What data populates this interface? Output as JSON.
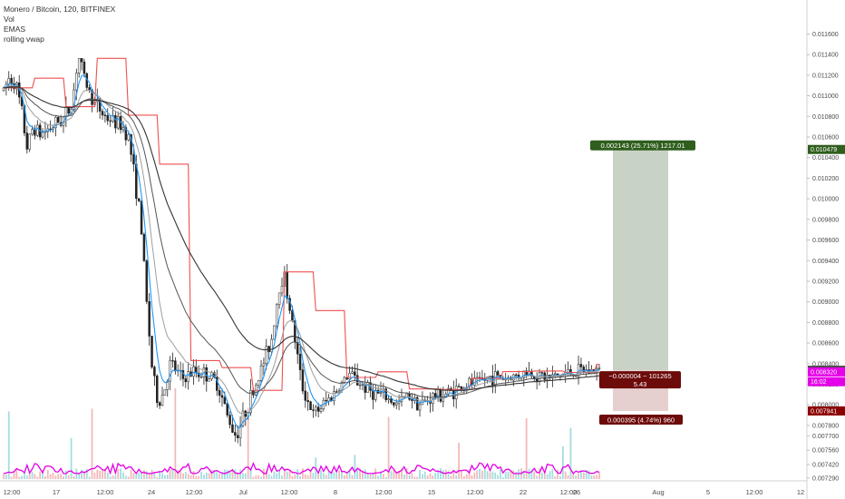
{
  "header": {
    "symbol_line": "Monero / Bitcoin, 120, BITFINEX",
    "indicators": [
      "Vol",
      "EMAS",
      "rolling vwap"
    ]
  },
  "chart_data": {
    "type": "candlestick",
    "ylim": [
      0.0072,
      0.0118
    ],
    "y_ticks": [
      "0.011600",
      "0.011400",
      "0.011200",
      "0.011000",
      "0.010800",
      "0.010600",
      "0.010400",
      "0.010200",
      "0.010000",
      "0.009800",
      "0.009600",
      "0.009400",
      "0.009200",
      "0.009000",
      "0.008800",
      "0.008600",
      "0.008400",
      "0.008200",
      "0.008000",
      "0.007800",
      "0.007700",
      "0.007560",
      "0.007420",
      "0.007290"
    ],
    "x_ticks": [
      "12:00",
      "17",
      "12:00",
      "24",
      "12:00",
      "Jul",
      "12:00",
      "8",
      "12:00",
      "15",
      "12:00",
      "22",
      "12:00",
      "26",
      "Aug",
      "5",
      "12:00",
      "12"
    ],
    "price_path": [
      [
        0.0,
        0.01105
      ],
      [
        0.01,
        0.01118
      ],
      [
        0.02,
        0.01112
      ],
      [
        0.03,
        0.01085
      ],
      [
        0.04,
        0.01048
      ],
      [
        0.05,
        0.01072
      ],
      [
        0.06,
        0.01062
      ],
      [
        0.08,
        0.0107
      ],
      [
        0.1,
        0.01078
      ],
      [
        0.115,
        0.01092
      ],
      [
        0.125,
        0.0114
      ],
      [
        0.135,
        0.01118
      ],
      [
        0.15,
        0.01095
      ],
      [
        0.17,
        0.0108
      ],
      [
        0.185,
        0.01075
      ],
      [
        0.2,
        0.0107
      ],
      [
        0.21,
        0.0106
      ],
      [
        0.22,
        0.0102
      ],
      [
        0.23,
        0.0098
      ],
      [
        0.24,
        0.009
      ],
      [
        0.25,
        0.0083
      ],
      [
        0.26,
        0.008
      ],
      [
        0.27,
        0.00815
      ],
      [
        0.28,
        0.0084
      ],
      [
        0.3,
        0.00825
      ],
      [
        0.32,
        0.00832
      ],
      [
        0.34,
        0.0083
      ],
      [
        0.36,
        0.0082
      ],
      [
        0.375,
        0.0079
      ],
      [
        0.39,
        0.0077
      ],
      [
        0.41,
        0.008
      ],
      [
        0.43,
        0.0083
      ],
      [
        0.45,
        0.00865
      ],
      [
        0.46,
        0.00905
      ],
      [
        0.47,
        0.0093
      ],
      [
        0.48,
        0.00895
      ],
      [
        0.49,
        0.0086
      ],
      [
        0.5,
        0.0082
      ],
      [
        0.52,
        0.0079
      ],
      [
        0.54,
        0.00802
      ],
      [
        0.56,
        0.00815
      ],
      [
        0.58,
        0.0083
      ],
      [
        0.6,
        0.0082
      ],
      [
        0.62,
        0.00812
      ],
      [
        0.64,
        0.00808
      ],
      [
        0.66,
        0.008
      ],
      [
        0.68,
        0.0081
      ],
      [
        0.7,
        0.008
      ],
      [
        0.72,
        0.00808
      ],
      [
        0.74,
        0.0081
      ],
      [
        0.76,
        0.00815
      ],
      [
        0.78,
        0.0082
      ],
      [
        0.8,
        0.00822
      ],
      [
        0.82,
        0.00828
      ],
      [
        0.84,
        0.00826
      ],
      [
        0.86,
        0.00828
      ],
      [
        0.88,
        0.00832
      ],
      [
        0.9,
        0.00828
      ],
      [
        0.92,
        0.00826
      ],
      [
        0.94,
        0.0083
      ],
      [
        0.96,
        0.00832
      ],
      [
        0.98,
        0.00833
      ],
      [
        1.0,
        0.008336
      ]
    ],
    "position_tool": {
      "entry": 0.008336,
      "target": 0.010479,
      "stop": 0.007941,
      "target_label": "0.002143 (25.71%) 1217.01",
      "stop_label": "0.000395 (4.74%) 960",
      "center_label": "−0.000004 ~ 101265",
      "center_sub": "5.43"
    },
    "price_badges": [
      {
        "value": 0.010479,
        "text": "0.010479",
        "color": "#2f5e1d"
      },
      {
        "value": 0.008336,
        "text": "0.008336",
        "color": "#4a4a4a"
      },
      {
        "value": 0.00832,
        "text": "0.008320",
        "color": "#e400e8"
      },
      {
        "value": 0.008225,
        "text": "16:02",
        "color": "#e400e8"
      },
      {
        "value": 0.007941,
        "text": "0.007941",
        "color": "#8b0000"
      }
    ],
    "colors": {
      "up": "#222222",
      "down": "#222222",
      "ema_blue": "#2196f3",
      "ema_grey": "#9e9e9e",
      "ema_dark": "#333333",
      "vwap_red": "#f05050",
      "volume_line": "#e400e8",
      "target_fill": "#c9d3c5",
      "stop_fill": "#e6cfcf"
    }
  }
}
